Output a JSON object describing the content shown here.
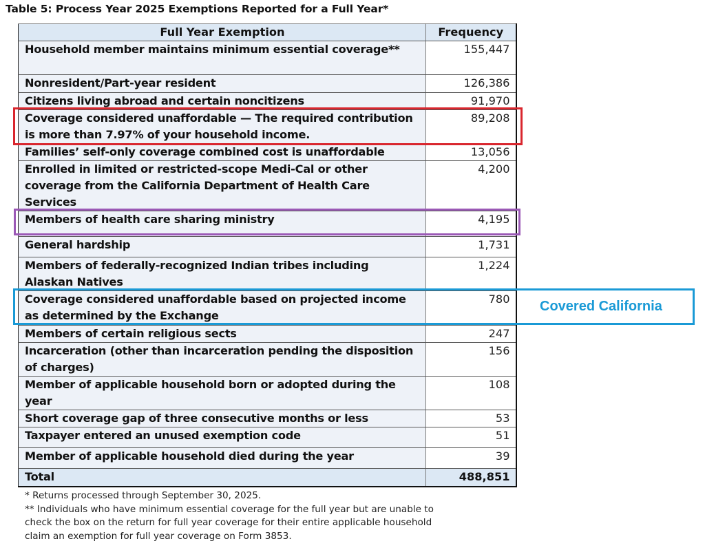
{
  "title": "Table 5: Process Year 2025 Exemptions Reported for a Full Year*",
  "table": {
    "headers": {
      "exemption": "Full Year Exemption",
      "frequency": "Frequency"
    },
    "rows": [
      {
        "exemption": "Household member maintains minimum essential coverage**",
        "frequency": "155,447",
        "height": 49
      },
      {
        "exemption": "Nonresident/Part-year resident",
        "frequency": "126,386",
        "height": 26
      },
      {
        "exemption": "Citizens living abroad and certain noncitizens",
        "frequency": "91,970",
        "height": 25
      },
      {
        "exemption": "Coverage considered unaffordable — The required contribution is more than 7.97% of your household income.",
        "frequency": "89,208",
        "height": 49
      },
      {
        "exemption": "Families’ self-only coverage combined cost is unaffordable",
        "frequency": "13,056",
        "height": 24
      },
      {
        "exemption": "Enrolled in limited or restricted-scope Medi-Cal or other coverage from the California Department of Health Care Services",
        "frequency": "4,200",
        "height": 73
      },
      {
        "exemption": "Members of health care sharing ministry",
        "frequency": "4,195",
        "height": 37
      },
      {
        "exemption": "General hardship",
        "frequency": "1,731",
        "height": 30
      },
      {
        "exemption": "Members of federally-recognized Indian tribes including Alaskan Natives",
        "frequency": "1,224",
        "height": 49
      },
      {
        "exemption": "Coverage considered unaffordable based on projected income as determined by the Exchange",
        "frequency": "780",
        "height": 50
      },
      {
        "exemption": "Members of certain religious sects",
        "frequency": "247",
        "height": 25
      },
      {
        "exemption": "Incarceration (other than incarceration pending the disposition of charges)",
        "frequency": "156",
        "height": 49
      },
      {
        "exemption": "Member of applicable household born or adopted during the year",
        "frequency": "108",
        "height": 49
      },
      {
        "exemption": "Short coverage gap of three consecutive months or less",
        "frequency": "53",
        "height": 24
      },
      {
        "exemption": "Taxpayer entered an unused exemption code",
        "frequency": "51",
        "height": 30
      },
      {
        "exemption": "Member of applicable household died during the year",
        "frequency": "39",
        "height": 30
      }
    ],
    "total": {
      "label": "Total",
      "frequency": "488,851"
    }
  },
  "highlights": {
    "red": {
      "row_index": 3,
      "color": "#d9262e"
    },
    "purple": {
      "row_index": 6,
      "color": "#9b59b6"
    },
    "blue": {
      "row_index": 9,
      "color": "#1a9ad6",
      "label": "Covered California"
    }
  },
  "footnotes": [
    "* Returns processed through September 30, 2025.",
    "** Individuals who have minimum essential coverage for the full year but are unable to",
    "check the box on the return for full year coverage for their entire applicable household",
    "claim an exemption for full year coverage on Form 3853."
  ]
}
